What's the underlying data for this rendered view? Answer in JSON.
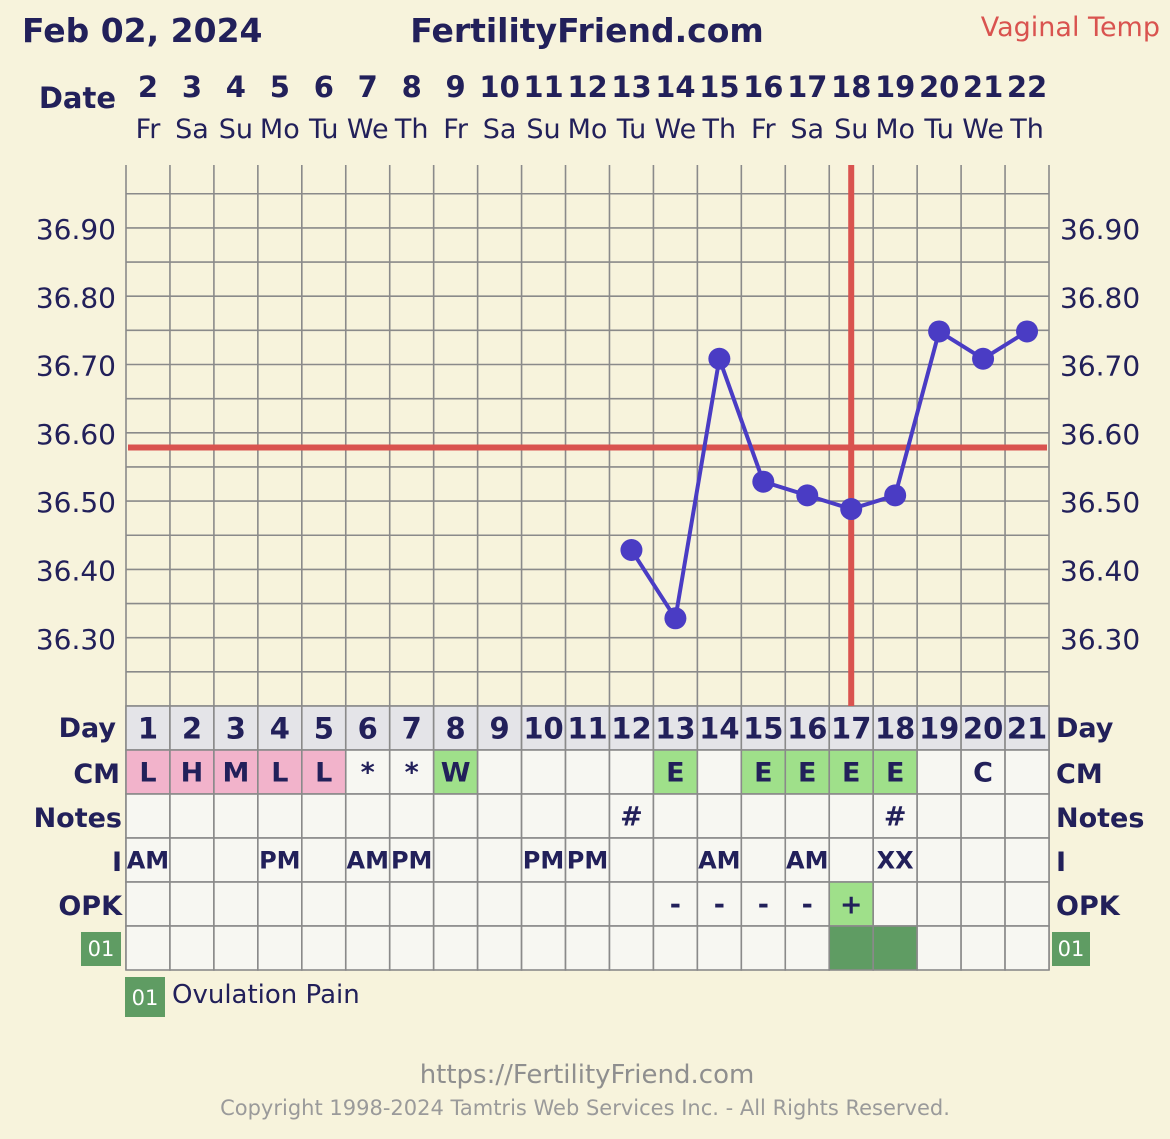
{
  "header": {
    "date": "Feb 02, 2024",
    "site": "FertilityFriend.com",
    "temp_type": "Vaginal Temp"
  },
  "labels": {
    "date": "Date",
    "day": "Day",
    "cm": "CM",
    "notes": "Notes",
    "intercourse": "I",
    "opk": "OPK",
    "custom_code": "01"
  },
  "legend": {
    "code": "01",
    "text": "Ovulation Pain"
  },
  "footer": {
    "url": "https://FertilityFriend.com",
    "copyright": "Copyright 1998-2024 Tamtris Web Services Inc. - All Rights Reserved."
  },
  "colors": {
    "background": "#f7f3dc",
    "series": "#4a3cc4",
    "coverline": "#d9534f",
    "cm_fertile": "#9fe08a",
    "cm_infertile": "#f2b3cb",
    "custom_fill": "#5f9c63",
    "day_row": "#e4e4e8",
    "cell": "#f7f7f2",
    "grid": "#8a8a8a"
  },
  "chart_data": {
    "type": "line",
    "title": "Vaginal Temp",
    "ylim": [
      36.22,
      36.99
    ],
    "yticks": [
      "36.90",
      "36.80",
      "36.70",
      "36.60",
      "36.50",
      "36.40",
      "36.30"
    ],
    "dates": [
      "2",
      "3",
      "4",
      "5",
      "6",
      "7",
      "8",
      "9",
      "10",
      "11",
      "12",
      "13",
      "14",
      "15",
      "16",
      "17",
      "18",
      "19",
      "20",
      "21",
      "22"
    ],
    "weekdays": [
      "Fr",
      "Sa",
      "Su",
      "Mo",
      "Tu",
      "We",
      "Th",
      "Fr",
      "Sa",
      "Su",
      "Mo",
      "Tu",
      "We",
      "Th",
      "Fr",
      "Sa",
      "Su",
      "Mo",
      "Tu",
      "We",
      "Th"
    ],
    "cycle_days": [
      "1",
      "2",
      "3",
      "4",
      "5",
      "6",
      "7",
      "8",
      "9",
      "10",
      "11",
      "12",
      "13",
      "14",
      "15",
      "16",
      "17",
      "18",
      "19",
      "20",
      "21"
    ],
    "series": [
      {
        "values": [
          null,
          null,
          null,
          null,
          null,
          null,
          null,
          null,
          null,
          null,
          null,
          36.43,
          36.33,
          36.71,
          36.53,
          36.51,
          36.49,
          36.51,
          36.75,
          36.71,
          36.75
        ]
      }
    ],
    "coverline": 36.58,
    "ovulation_day": "18",
    "cm": [
      "L",
      "H",
      "M",
      "L",
      "L",
      "*",
      "*",
      "W",
      "",
      "",
      "",
      "",
      "E",
      "",
      "E",
      "E",
      "E",
      "E",
      "",
      "C",
      ""
    ],
    "cm_type": [
      "pink",
      "pink",
      "pink",
      "pink",
      "pink",
      "",
      "",
      "green",
      "",
      "",
      "",
      "",
      "green",
      "",
      "green",
      "green",
      "green",
      "green",
      "",
      "",
      ""
    ],
    "notes": [
      "",
      "",
      "",
      "",
      "",
      "",
      "",
      "",
      "",
      "",
      "",
      "#",
      "",
      "",
      "",
      "",
      "",
      "#",
      "",
      "",
      ""
    ],
    "intercourse": [
      "AM",
      "",
      "",
      "PM",
      "",
      "AM",
      "PM",
      "",
      "",
      "PM",
      "PM",
      "",
      "",
      "AM",
      "",
      "AM",
      "",
      "XX",
      "",
      "",
      ""
    ],
    "opk": [
      "",
      "",
      "",
      "",
      "",
      "",
      "",
      "",
      "",
      "",
      "",
      "",
      "-",
      "-",
      "-",
      "-",
      "+",
      "",
      "",
      "",
      ""
    ],
    "opk_positive": [
      false,
      false,
      false,
      false,
      false,
      false,
      false,
      false,
      false,
      false,
      false,
      false,
      false,
      false,
      false,
      false,
      true,
      false,
      false,
      false,
      false
    ],
    "custom_01": [
      false,
      false,
      false,
      false,
      false,
      false,
      false,
      false,
      false,
      false,
      false,
      false,
      false,
      false,
      false,
      false,
      true,
      true,
      false,
      false,
      false
    ]
  }
}
